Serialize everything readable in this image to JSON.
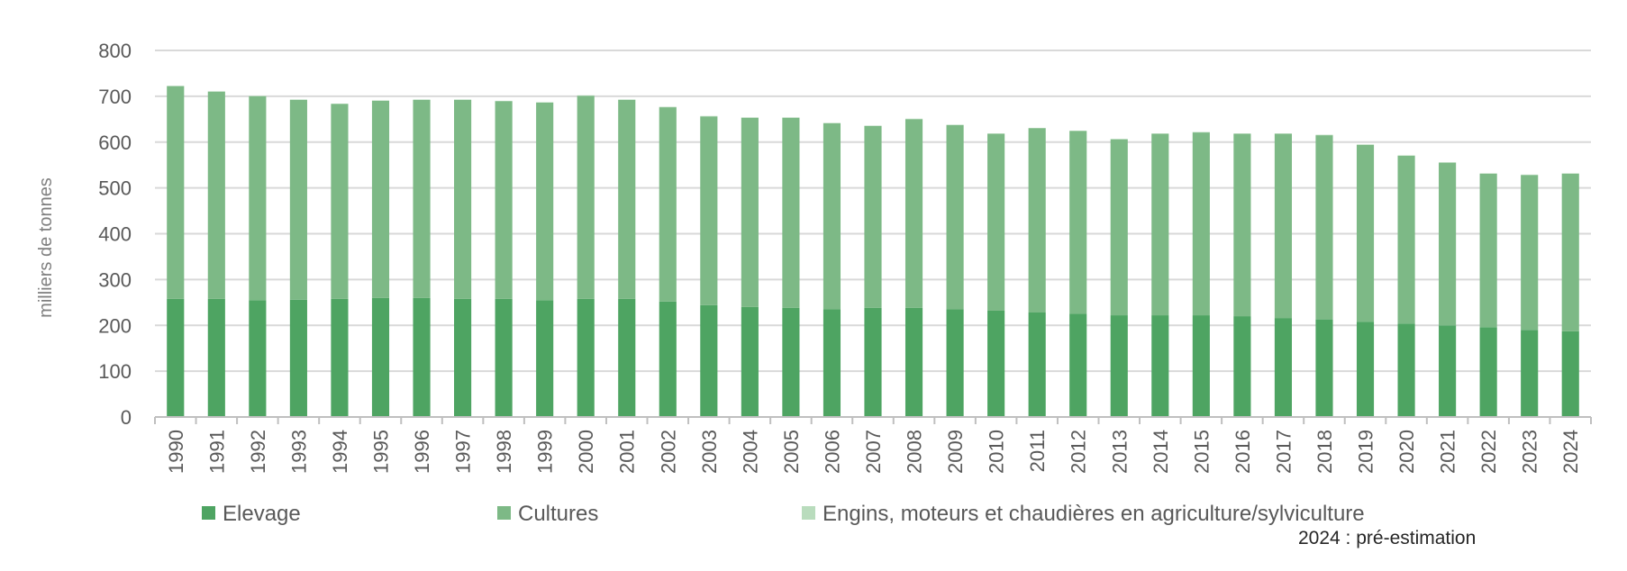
{
  "chart_data": {
    "type": "bar",
    "stacked": true,
    "ylabel": "milliers de tonnes",
    "ylim": [
      0,
      800
    ],
    "yticks": [
      0,
      100,
      200,
      300,
      400,
      500,
      600,
      700,
      800
    ],
    "grid": true,
    "legend_position": "bottom",
    "note": "2024 : pré-estimation",
    "categories": [
      "1990",
      "1991",
      "1992",
      "1993",
      "1994",
      "1995",
      "1996",
      "1997",
      "1998",
      "1999",
      "2000",
      "2001",
      "2002",
      "2003",
      "2004",
      "2005",
      "2006",
      "2007",
      "2008",
      "2009",
      "2010",
      "2011",
      "2012",
      "2013",
      "2014",
      "2015",
      "2016",
      "2017",
      "2018",
      "2019",
      "2020",
      "2021",
      "2022",
      "2023",
      "2024"
    ],
    "series": [
      {
        "name": "Elevage",
        "color": "#4ea462",
        "values": [
          258,
          258,
          255,
          256,
          258,
          260,
          260,
          258,
          258,
          255,
          258,
          258,
          252,
          244,
          240,
          238,
          235,
          238,
          238,
          235,
          232,
          228,
          225,
          222,
          222,
          222,
          220,
          216,
          213,
          208,
          204,
          200,
          196,
          190,
          187
        ]
      },
      {
        "name": "Cultures",
        "color": "#7db986",
        "values": [
          464,
          452,
          445,
          436,
          425,
          430,
          432,
          434,
          431,
          431,
          443,
          434,
          424,
          412,
          413,
          415,
          406,
          397,
          412,
          402,
          386,
          402,
          399,
          384,
          396,
          399,
          398,
          402,
          402,
          386,
          366,
          355,
          335,
          338,
          344
        ]
      },
      {
        "name": "Engins, moteurs et chaudières en agriculture/sylviculture",
        "color": "#b9dcbd",
        "values": [
          1,
          1,
          1,
          1,
          1,
          1,
          1,
          1,
          1,
          1,
          1,
          1,
          1,
          1,
          1,
          1,
          1,
          1,
          1,
          1,
          1,
          1,
          1,
          1,
          1,
          1,
          1,
          1,
          1,
          1,
          1,
          1,
          1,
          1,
          1
        ]
      }
    ]
  }
}
